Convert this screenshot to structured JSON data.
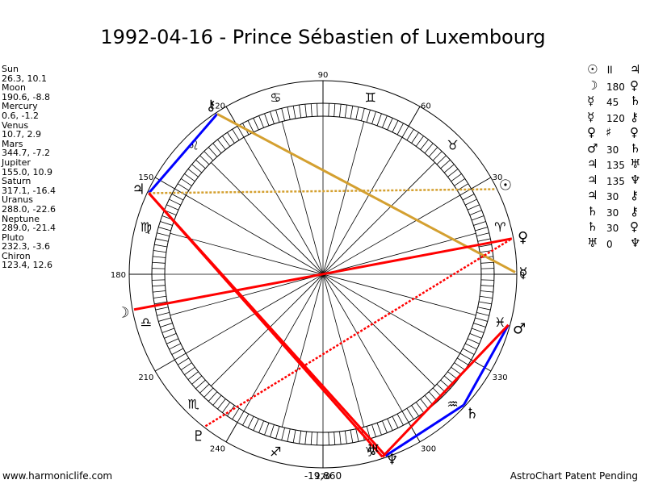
{
  "title": "1992-04-16 - Prince Sébastien of Luxembourg",
  "planets": [
    {
      "name": "Sun",
      "coords": "26.3, 10.1"
    },
    {
      "name": "Moon",
      "coords": "190.6, -8.8"
    },
    {
      "name": "Mercury",
      "coords": "0.6, -1.2"
    },
    {
      "name": "Venus",
      "coords": "10.7, 2.9"
    },
    {
      "name": "Mars",
      "coords": "344.7, -7.2"
    },
    {
      "name": "Jupiter",
      "coords": "155.0, 10.9"
    },
    {
      "name": "Saturn",
      "coords": "317.1, -16.4"
    },
    {
      "name": "Uranus",
      "coords": "288.0, -22.6"
    },
    {
      "name": "Neptune",
      "coords": "289.0, -21.4"
    },
    {
      "name": "Pluto",
      "coords": "232.3, -3.6"
    },
    {
      "name": "Chiron",
      "coords": "123.4, 12.6"
    }
  ],
  "aspects": [
    {
      "p1": "☉",
      "sym": "॥",
      "angle": "",
      "p2": "♃"
    },
    {
      "p1": "☽",
      "sym": "",
      "angle": "180",
      "p2": "♀"
    },
    {
      "p1": "☿",
      "sym": "",
      "angle": "45",
      "p2": "♄"
    },
    {
      "p1": "☿",
      "sym": "",
      "angle": "120",
      "p2": "⚷"
    },
    {
      "p1": "♀",
      "sym": "♯",
      "angle": "",
      "p2": "♀"
    },
    {
      "p1": "♂",
      "sym": "",
      "angle": "30",
      "p2": "♄"
    },
    {
      "p1": "♃",
      "sym": "",
      "angle": "135",
      "p2": "♅"
    },
    {
      "p1": "♃",
      "sym": "",
      "angle": "135",
      "p2": "♆"
    },
    {
      "p1": "♃",
      "sym": "",
      "angle": "30",
      "p2": "⚷"
    },
    {
      "p1": "♄",
      "sym": "",
      "angle": "30",
      "p2": "⚷"
    },
    {
      "p1": "♄",
      "sym": "",
      "angle": "30",
      "p2": "♀"
    },
    {
      "p1": "♅",
      "sym": "",
      "angle": "0",
      "p2": "♆"
    }
  ],
  "wheel": {
    "degree_labels": [
      {
        "deg": 0,
        "text": "0"
      },
      {
        "deg": 30,
        "text": "30"
      },
      {
        "deg": 60,
        "text": "60"
      },
      {
        "deg": 90,
        "text": "90"
      },
      {
        "deg": 120,
        "text": "120"
      },
      {
        "deg": 150,
        "text": "150"
      },
      {
        "deg": 180,
        "text": "180"
      },
      {
        "deg": 210,
        "text": "210"
      },
      {
        "deg": 240,
        "text": "240"
      },
      {
        "deg": 270,
        "text": "270"
      },
      {
        "deg": 300,
        "text": "300"
      },
      {
        "deg": 330,
        "text": "330"
      }
    ],
    "signs": [
      "♈",
      "♉",
      "♊",
      "♋",
      "♌",
      "♍",
      "♎",
      "♏",
      "♐",
      "♑",
      "♒",
      "♓"
    ],
    "planet_glyphs": [
      {
        "glyph": "☉",
        "deg": 26.3
      },
      {
        "glyph": "☽",
        "deg": 190.6
      },
      {
        "glyph": "☿",
        "deg": 0.6
      },
      {
        "glyph": "♀",
        "deg": 10.7
      },
      {
        "glyph": "♂",
        "deg": 344.7
      },
      {
        "glyph": "♃",
        "deg": 155.0
      },
      {
        "glyph": "♄",
        "deg": 317.1
      },
      {
        "glyph": "♅",
        "deg": 288.0
      },
      {
        "glyph": "♆",
        "deg": 289.0
      },
      {
        "glyph": "♇",
        "deg": 232.3
      },
      {
        "glyph": "⚷",
        "deg": 123.4
      }
    ],
    "aspect_lines": [
      {
        "from": 123.4,
        "to": 155.0,
        "color": "#0000ff",
        "style": "solid"
      },
      {
        "from": 123.4,
        "to": 0.6,
        "color": "#d4a030",
        "style": "solid"
      },
      {
        "from": 155.0,
        "to": 26.3,
        "color": "#d4a030",
        "style": "dotted"
      },
      {
        "from": 155.0,
        "to": 288.0,
        "color": "#ff0000",
        "style": "solid"
      },
      {
        "from": 155.0,
        "to": 289.0,
        "color": "#ff0000",
        "style": "solid"
      },
      {
        "from": 190.6,
        "to": 10.7,
        "color": "#ff0000",
        "style": "solid"
      },
      {
        "from": 232.3,
        "to": 10.7,
        "color": "#ff0000",
        "style": "dotted"
      },
      {
        "from": 289.0,
        "to": 317.1,
        "color": "#0000ff",
        "style": "solid"
      },
      {
        "from": 317.1,
        "to": 344.7,
        "color": "#0000ff",
        "style": "solid"
      },
      {
        "from": 288.0,
        "to": 344.7,
        "color": "#ff0000",
        "style": "solid"
      }
    ]
  },
  "footer": {
    "left": "www.harmoniclife.com",
    "center": "-19,860",
    "right": "AstroChart Patent Pending"
  }
}
